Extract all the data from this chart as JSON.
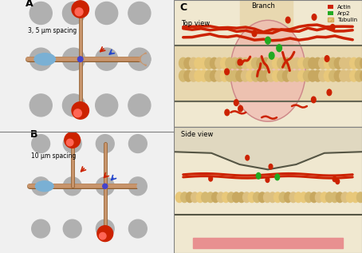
{
  "bg_color": "#f5f5f5",
  "panel_bg": "#ffffff",
  "gray_circle_color": "#b0b0b0",
  "neurite_color": "#c8956c",
  "neurite_outline": "#8b5a2b",
  "soma_color_blue": "#7ab0d4",
  "growth_cone_color": "#c8956c",
  "red_circle_color": "#cc2200",
  "red_circle_outline": "#991100",
  "label_A": "A",
  "label_B": "B",
  "label_C": "C",
  "text_A": "3, 5 μm spacing",
  "text_B": "10 μm spacing",
  "branch_label": "Branch",
  "top_view_label": "Top view",
  "side_view_label": "Side view",
  "legend_actin": "Actin",
  "legend_arp2": "Arp2",
  "legend_tubulin": "Tubulin",
  "actin_color": "#cc2200",
  "arp2_color": "#22aa22",
  "tubulin_color_light": "#e8c87a",
  "tubulin_color_dark": "#d4a85a",
  "channel_bg": "#f0e8d0",
  "branch_bg": "#e8d8b0",
  "growth_cone_area": "#f0b8b0",
  "red_dot_color": "#cc2200",
  "green_dot_color": "#22aa22",
  "side_bar_color": "#e89090"
}
